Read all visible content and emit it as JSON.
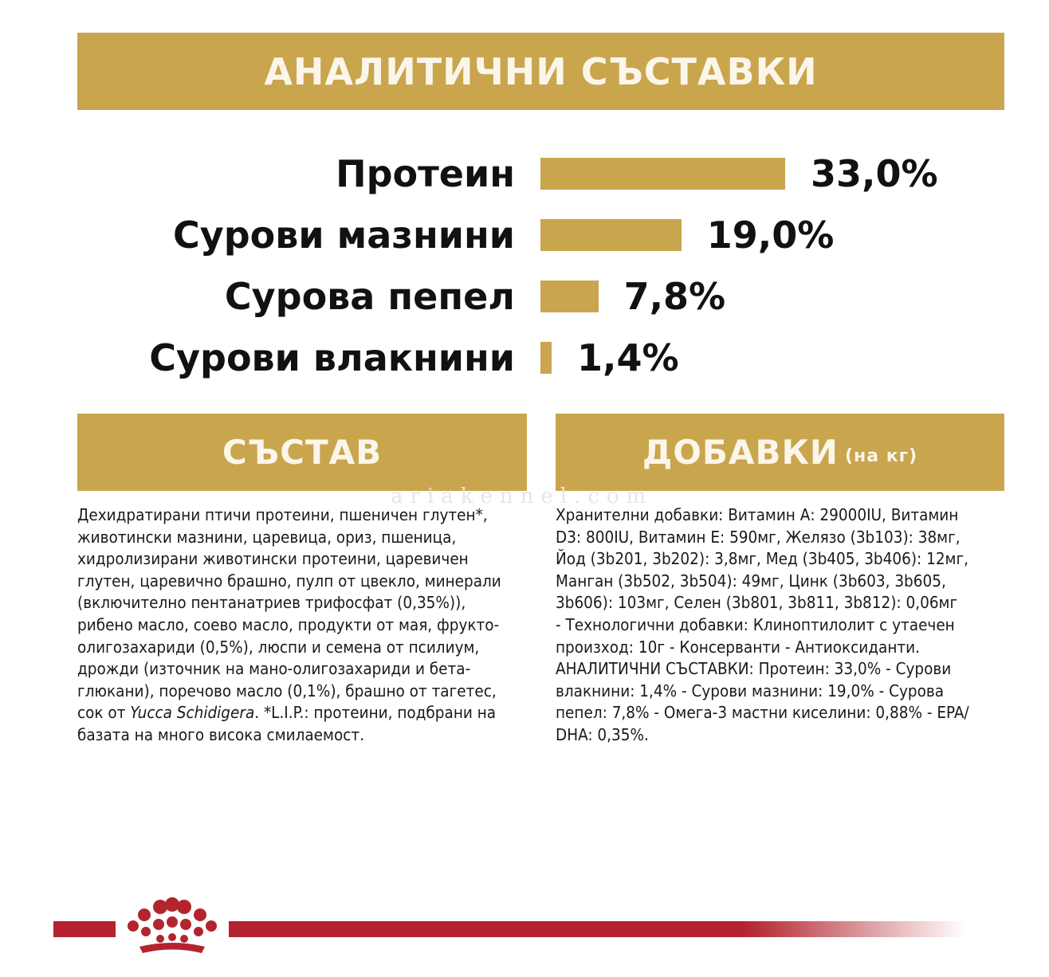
{
  "header": {
    "title": "АНАЛИТИЧНИ СЪСТАВКИ"
  },
  "colors": {
    "gold": "#c9a54e",
    "brand_red": "#b3242e",
    "text": "#111111"
  },
  "analytics": {
    "rows": [
      {
        "label": "Протеин",
        "value": "33,0%",
        "percent": 33.0
      },
      {
        "label": "Сурови мазнини",
        "value": "19,0%",
        "percent": 19.0
      },
      {
        "label": "Сурова пепел",
        "value": "7,8%",
        "percent": 7.8
      },
      {
        "label": "Сурови влакнини",
        "value": "1,4%",
        "percent": 1.4
      }
    ]
  },
  "composition": {
    "title": "СЪСТАВ",
    "lines": [
      "Дехидратирани птичи протеини, пшеничен глутен*,",
      "животински мазнини, царевица, ориз, пшеница,",
      "хидролизирани животински протеини, царевичен",
      "глутен, царевично брашно, пулп от цвекло, минерали",
      "(включително пентанатриев трифосфат (0,35%)),",
      "рибено масло, соево масло, продукти от мая, фрукто-",
      "олигозахариди (0,5%), люспи и семена от псилиум,",
      "дрожди (източник на мано-олигозахариди и бета-",
      "глюкани), поречово масло (0,1%), брашно от тагетес,"
    ],
    "line10_prefix": "сок от ",
    "line10_italic": "Yucca Schidigera",
    "line10_suffix": ". *L.I.P.: протеини, подбрани на",
    "line11": "базата на много висока смилаемост."
  },
  "additives": {
    "title": "ДОБАВКИ",
    "unit": "(на кг)",
    "lines": [
      "Хранителни добавки: Витамин А: 29000IU, Витамин",
      "D3: 800IU, Витамин Е: 590мг, Желязо (3b103): 38мг,",
      "Йод (3b201, 3b202): 3,8мг, Мед (3b405, 3b406): 12мг,",
      "Манган (3b502, 3b504): 49мг, Цинк (3b603, 3b605,",
      "3b606): 103мг, Селен (3b801, 3b811, 3b812): 0,06мг",
      "- Технологични добавки: Клиноптилолит с утаечен",
      "произход: 10г - Консерванти - Антиоксиданти.",
      "АНАЛИТИЧНИ СЪСТАВКИ: Протеин: 33,0% - Сурови",
      "влакнини: 1,4% - Сурови мазнини: 19,0% - Сурова",
      "пепел: 7,8% - Омега-3 мастни киселини: 0,88% - EPA/",
      "DHA: 0,35%."
    ]
  },
  "watermark": "ariakennel.com",
  "footer": {
    "logo_icon": "royal-canin-crown-icon"
  }
}
